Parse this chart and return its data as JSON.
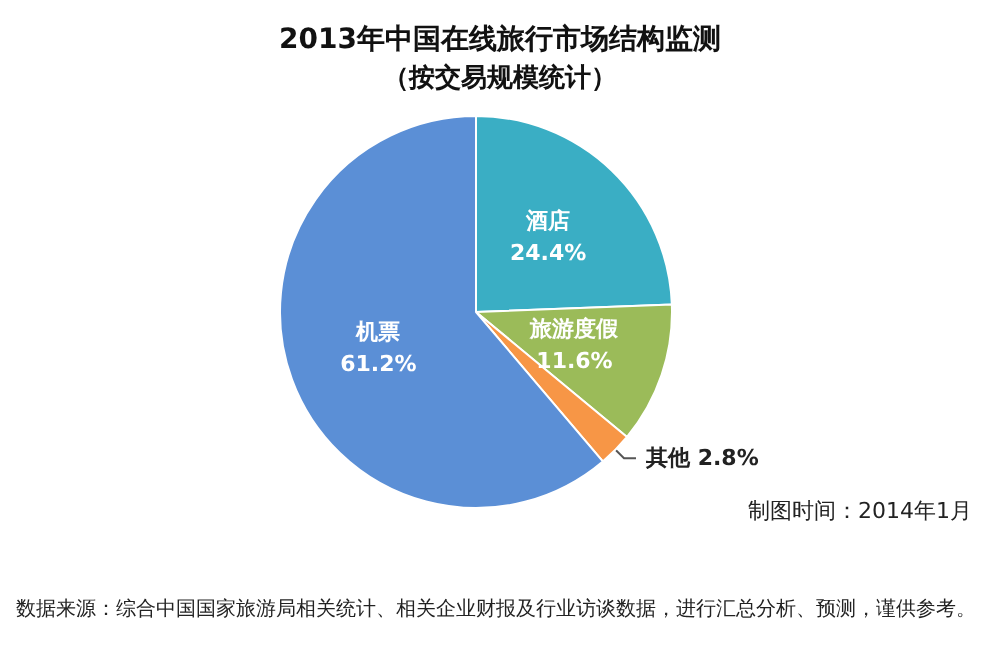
{
  "chart_data": {
    "type": "pie",
    "title": "2013年中国在线旅行市场结构监测",
    "subtitle": "（按交易规模统计）",
    "categories": [
      "酒店",
      "旅游度假",
      "其他",
      "机票"
    ],
    "values": [
      24.4,
      11.6,
      2.8,
      61.2
    ],
    "value_labels": [
      "24.4%",
      "11.6%",
      "2.8%",
      "61.2%"
    ],
    "colors": [
      "#3aaec4",
      "#9bbb59",
      "#f79646",
      "#5b8fd6"
    ],
    "annotations": [
      "制图时间：2014年1月",
      "数据来源：综合中国国家旅游局相关统计、相关企业财报及行业访谈数据，进行汇总分析、预测，谨供参考。"
    ],
    "legend": false
  }
}
